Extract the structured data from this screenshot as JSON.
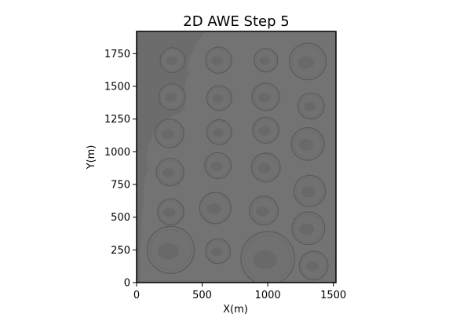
{
  "chart_data": {
    "type": "heatmap",
    "title": "2D AWE Step 5",
    "xlabel": "X(m)",
    "ylabel": "Y(m)",
    "xlim": [
      0,
      1520
    ],
    "ylim": [
      0,
      1920
    ],
    "xticks": [
      0,
      500,
      1000,
      1500
    ],
    "yticks": [
      0,
      250,
      500,
      750,
      1000,
      1250,
      1500,
      1750
    ],
    "grid": false,
    "background_color": "#737373",
    "left_strip_color": "#6c6c6c",
    "colors": {
      "coin_fill": "#717171",
      "coin_edge": "#5a5a5a",
      "coin_dark": "#5f5f5f"
    },
    "coins": [
      {
        "x": 275,
        "y": 1700,
        "r": 95
      },
      {
        "x": 625,
        "y": 1700,
        "r": 100
      },
      {
        "x": 985,
        "y": 1700,
        "r": 90
      },
      {
        "x": 1305,
        "y": 1690,
        "r": 140
      },
      {
        "x": 270,
        "y": 1420,
        "r": 100
      },
      {
        "x": 630,
        "y": 1410,
        "r": 95
      },
      {
        "x": 985,
        "y": 1420,
        "r": 105
      },
      {
        "x": 1330,
        "y": 1350,
        "r": 100
      },
      {
        "x": 250,
        "y": 1140,
        "r": 110
      },
      {
        "x": 630,
        "y": 1150,
        "r": 95
      },
      {
        "x": 985,
        "y": 1165,
        "r": 100
      },
      {
        "x": 1305,
        "y": 1060,
        "r": 125
      },
      {
        "x": 255,
        "y": 845,
        "r": 105
      },
      {
        "x": 620,
        "y": 895,
        "r": 100
      },
      {
        "x": 985,
        "y": 880,
        "r": 110
      },
      {
        "x": 1320,
        "y": 700,
        "r": 120
      },
      {
        "x": 260,
        "y": 540,
        "r": 100
      },
      {
        "x": 600,
        "y": 570,
        "r": 120
      },
      {
        "x": 970,
        "y": 550,
        "r": 110
      },
      {
        "x": 1310,
        "y": 415,
        "r": 125
      },
      {
        "x": 260,
        "y": 250,
        "r": 180
      },
      {
        "x": 620,
        "y": 240,
        "r": 95
      },
      {
        "x": 1000,
        "y": 185,
        "r": 205
      },
      {
        "x": 1350,
        "y": 130,
        "r": 110
      }
    ]
  }
}
